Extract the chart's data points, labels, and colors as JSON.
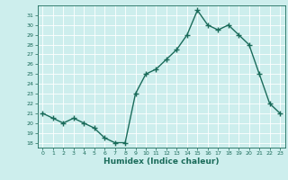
{
  "x": [
    0,
    1,
    2,
    3,
    4,
    5,
    6,
    7,
    8,
    9,
    10,
    11,
    12,
    13,
    14,
    15,
    16,
    17,
    18,
    19,
    20,
    21,
    22,
    23
  ],
  "humidex": [
    21,
    20.5,
    20,
    20.5,
    20,
    19.5,
    18.5,
    18,
    18,
    23,
    25,
    25.5,
    26.5,
    27.5,
    29,
    31.5,
    30,
    29.5,
    30,
    29,
    28,
    25,
    22,
    21
  ],
  "xlabel": "Humidex (Indice chaleur)",
  "line_color": "#1a6b5a",
  "bg_color": "#cdeeed",
  "grid_color": "#ffffff",
  "ylim": [
    17.5,
    32
  ],
  "xlim": [
    -0.5,
    23.5
  ],
  "yticks": [
    18,
    19,
    20,
    21,
    22,
    23,
    24,
    25,
    26,
    27,
    28,
    29,
    30,
    31
  ],
  "xticks": [
    0,
    1,
    2,
    3,
    4,
    5,
    6,
    7,
    8,
    9,
    10,
    11,
    12,
    13,
    14,
    15,
    16,
    17,
    18,
    19,
    20,
    21,
    22,
    23
  ]
}
